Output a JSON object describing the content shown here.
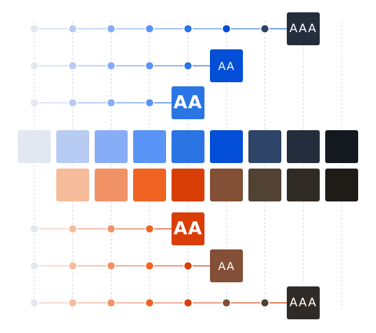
{
  "palette": {
    "blue": [
      "#e2e7f0",
      "#b8cbf2",
      "#87adf7",
      "#5a94f6",
      "#2a74e4",
      "#024ed6",
      "#2e4468",
      "#242d3c",
      "#14181f"
    ],
    "orange": [
      "#f6bc9b",
      "#f29267",
      "#ef6423",
      "#d93e06",
      "#834f37",
      "#524233",
      "#312b26",
      "#1f1c18"
    ]
  },
  "blue_rows": [
    {
      "badge_label": "AAA",
      "badge_style": "aaa",
      "badge_color": "#242d3c",
      "dots": 7
    },
    {
      "badge_label": "AA",
      "badge_style": "aa-small",
      "badge_color": "#024ed6",
      "dots": 5
    },
    {
      "badge_label": "AA",
      "badge_style": "aa-large",
      "badge_color": "#2a74e4",
      "dots": 4
    }
  ],
  "orange_rows": [
    {
      "badge_label": "AA",
      "badge_style": "aa-large",
      "badge_color": "#d93e06",
      "dots": 4
    },
    {
      "badge_label": "AA",
      "badge_style": "aa-small",
      "badge_color": "#834f37",
      "dots": 5
    },
    {
      "badge_label": "AAA",
      "badge_style": "aaa",
      "badge_color": "#312b26",
      "dots": 7
    }
  ],
  "colors": {
    "gridline": "#d4d7dc",
    "blue_connector": "#2a74e4",
    "orange_connector": "#d93e06"
  }
}
